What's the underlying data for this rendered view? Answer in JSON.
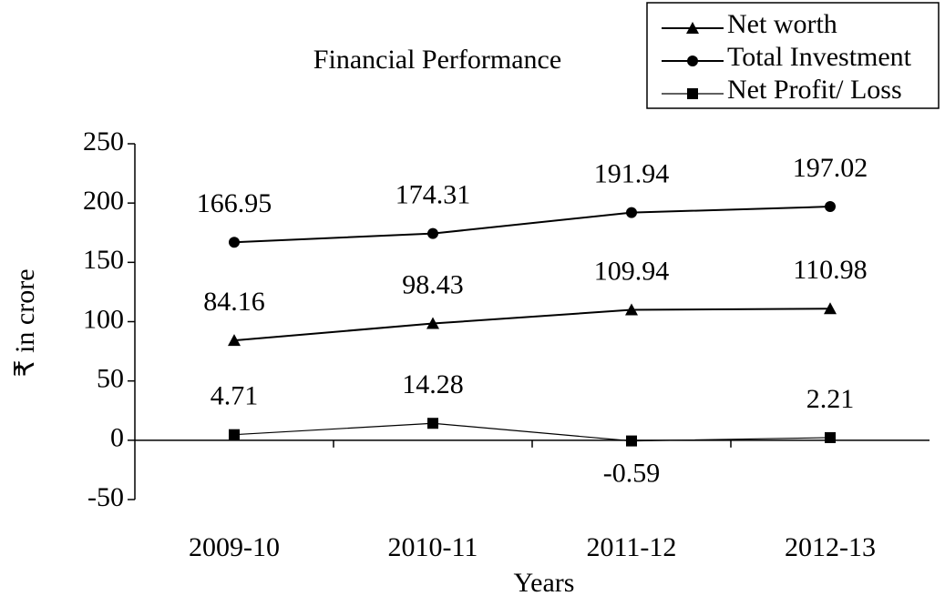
{
  "chart_data": {
    "type": "line",
    "title": "Financial Performance",
    "xlabel": "Years",
    "ylabel": "₹ in crore",
    "categories": [
      "2009-10",
      "2010-11",
      "2011-12",
      "2012-13"
    ],
    "series": [
      {
        "name": "Net worth",
        "color": "#000000",
        "marker": "triangle",
        "values": [
          84.16,
          98.43,
          109.94,
          110.98
        ]
      },
      {
        "name": "Total Investment",
        "color": "#000000",
        "marker": "circle",
        "values": [
          166.95,
          174.31,
          191.94,
          197.02
        ]
      },
      {
        "name": "Net Profit/ Loss",
        "color": "#000000",
        "marker": "square",
        "values": [
          4.71,
          14.28,
          -0.59,
          2.21
        ]
      }
    ],
    "ylim": [
      -50,
      250
    ],
    "yticks": [
      -50,
      0,
      50,
      100,
      150,
      200,
      250
    ],
    "grid": false,
    "legend": "upper right"
  }
}
